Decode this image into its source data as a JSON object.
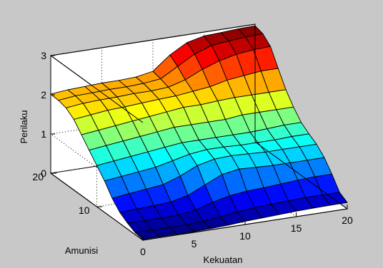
{
  "chart_data": {
    "type": "surface",
    "title": "",
    "xlabel": "Kekuatan",
    "ylabel": "Amunisi",
    "zlabel": "Perilaku",
    "xlim": [
      0,
      20
    ],
    "ylim": [
      0,
      20
    ],
    "zlim": [
      0,
      3
    ],
    "x_ticks": [
      "0",
      "5",
      "10",
      "15",
      "20"
    ],
    "y_ticks": [
      "10",
      "20"
    ],
    "z_ticks": [
      "0",
      "1",
      "2",
      "3"
    ],
    "grid": true,
    "colormap": "jet",
    "x": [
      0,
      1.667,
      3.333,
      5,
      6.667,
      8.333,
      10,
      11.667,
      13.333,
      15,
      16.667,
      18.333,
      20
    ],
    "y": [
      0,
      1.667,
      3.333,
      5,
      6.667,
      8.333,
      10,
      11.667,
      13.333,
      15,
      16.667,
      18.333,
      20
    ],
    "z": [
      [
        0.02,
        0.02,
        0.02,
        0.02,
        0.03,
        0.05,
        0.08,
        0.1,
        0.12,
        0.14,
        0.15,
        0.16,
        0.16
      ],
      [
        0.05,
        0.05,
        0.05,
        0.05,
        0.08,
        0.12,
        0.18,
        0.22,
        0.24,
        0.26,
        0.28,
        0.28,
        0.28
      ],
      [
        0.15,
        0.15,
        0.15,
        0.16,
        0.22,
        0.35,
        0.45,
        0.5,
        0.52,
        0.55,
        0.58,
        0.6,
        0.6
      ],
      [
        0.28,
        0.3,
        0.32,
        0.35,
        0.45,
        0.65,
        0.85,
        0.92,
        0.9,
        0.88,
        0.88,
        0.88,
        0.88
      ],
      [
        0.5,
        0.55,
        0.6,
        0.65,
        0.8,
        1.0,
        1.1,
        1.12,
        1.1,
        1.08,
        1.08,
        1.08,
        1.08
      ],
      [
        0.8,
        0.85,
        0.9,
        0.95,
        1.05,
        1.15,
        1.2,
        1.2,
        1.18,
        1.18,
        1.18,
        1.2,
        1.2
      ],
      [
        1.05,
        1.1,
        1.15,
        1.2,
        1.25,
        1.3,
        1.3,
        1.3,
        1.3,
        1.3,
        1.32,
        1.35,
        1.35
      ],
      [
        1.3,
        1.35,
        1.4,
        1.45,
        1.5,
        1.55,
        1.55,
        1.55,
        1.55,
        1.6,
        1.6,
        1.6,
        1.6
      ],
      [
        1.55,
        1.6,
        1.65,
        1.7,
        1.75,
        1.8,
        1.85,
        1.85,
        1.88,
        1.9,
        1.9,
        1.9,
        1.9
      ],
      [
        1.8,
        1.85,
        1.9,
        1.92,
        1.95,
        1.98,
        2.0,
        2.05,
        2.1,
        2.2,
        2.25,
        2.3,
        2.3
      ],
      [
        1.95,
        2.0,
        2.02,
        2.03,
        2.05,
        2.05,
        2.08,
        2.2,
        2.4,
        2.55,
        2.65,
        2.7,
        2.72
      ],
      [
        2.0,
        2.05,
        2.06,
        2.08,
        2.08,
        2.1,
        2.15,
        2.4,
        2.65,
        2.8,
        2.85,
        2.88,
        2.9
      ],
      [
        2.02,
        2.06,
        2.08,
        2.1,
        2.1,
        2.12,
        2.2,
        2.55,
        2.8,
        2.9,
        2.92,
        2.95,
        2.96
      ]
    ]
  }
}
